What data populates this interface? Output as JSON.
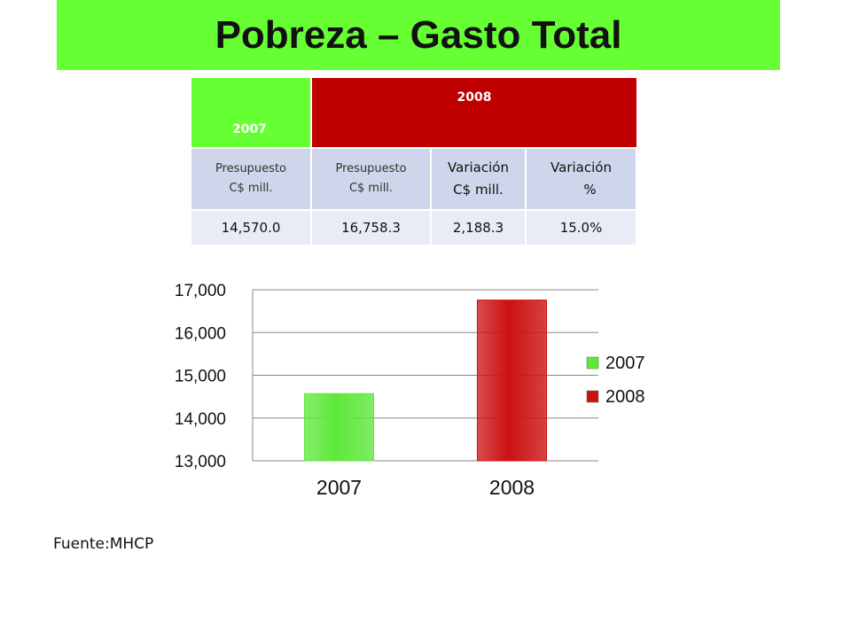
{
  "title": "Pobreza – Gasto Total",
  "table": {
    "year_2007": "2007",
    "year_2008": "2008",
    "col1_header_line1": "Presupuesto",
    "col1_header_line2": "C$ mill.",
    "col2_header_line1": "Presupuesto",
    "col2_header_line2": "C$ mill.",
    "col3_header_line1": "Variación",
    "col3_header_line2": "C$ mill.",
    "col4_header_line1": "Variación",
    "col4_header_line2": "%",
    "values": [
      "14,570.0",
      "16,758.3",
      "2,188.3",
      "15.0%"
    ]
  },
  "colors": {
    "green": "#66ff33",
    "red": "#c00000",
    "bar_green": "#5ee83a",
    "bar_red": "#cc1111"
  },
  "chart_data": {
    "type": "bar",
    "categories": [
      "2007",
      "2008"
    ],
    "series": [
      {
        "name": "2007",
        "values": [
          14570.0,
          null
        ],
        "color": "#5ee83a"
      },
      {
        "name": "2008",
        "values": [
          null,
          16758.3
        ],
        "color": "#cc1111"
      }
    ],
    "ylim": [
      13000,
      17000
    ],
    "yticks": [
      13000,
      14000,
      15000,
      16000,
      17000
    ],
    "ytick_labels": [
      "13,000",
      "14,000",
      "15,000",
      "16,000",
      "17,000"
    ],
    "xtick_labels": [
      "2007",
      "2008"
    ],
    "legend": [
      "2007",
      "2008"
    ],
    "legend_position": "right",
    "grid": true
  },
  "source": "Fuente:MHCP"
}
